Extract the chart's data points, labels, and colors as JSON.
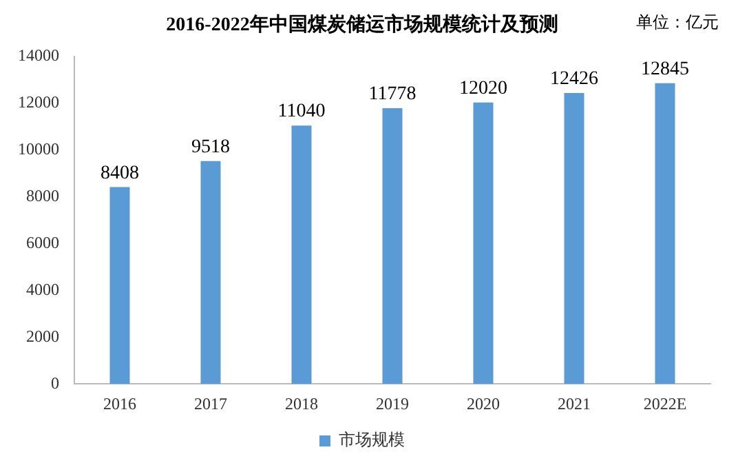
{
  "chart_data": {
    "type": "bar",
    "title": "2016-2022年中国煤炭储运市场规模统计及预测",
    "annotations": [
      "单位：亿元"
    ],
    "categories": [
      "2016",
      "2017",
      "2018",
      "2019",
      "2020",
      "2021",
      "2022E"
    ],
    "series": [
      {
        "name": "市场规模",
        "color": "#5b9bd5",
        "values": [
          8408,
          9518,
          11040,
          11778,
          12020,
          12426,
          12845
        ]
      }
    ],
    "ylim": [
      0,
      14000
    ],
    "yticks": [
      0,
      2000,
      4000,
      6000,
      8000,
      10000,
      12000,
      14000
    ],
    "grid": false,
    "legend": "bottom",
    "data_labels": true
  }
}
